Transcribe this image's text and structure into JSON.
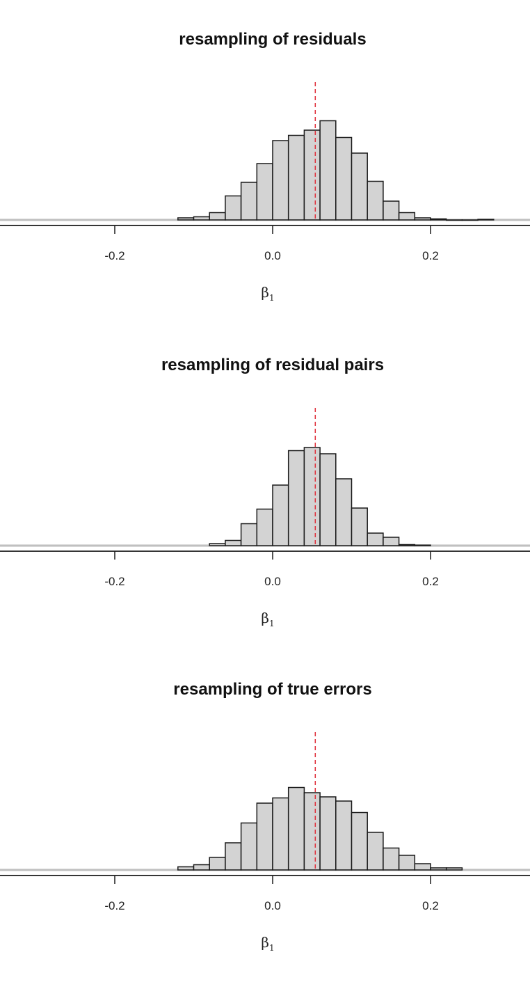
{
  "chart_data": [
    {
      "type": "bar",
      "title": "resampling of residuals",
      "xlabel": "β1",
      "xlabel_main": "β",
      "xlabel_sub": "1",
      "xlim": [
        -0.34,
        0.33
      ],
      "xticks": [
        -0.2,
        0.0,
        0.2
      ],
      "xtick_labels": [
        "-0.2",
        "0.0",
        "0.2"
      ],
      "ylim": [
        0,
        1.0
      ],
      "reference_line": {
        "x": 0.054,
        "style": "dashed",
        "color": "#e0303c"
      },
      "bin_width": 0.02,
      "bin_starts": [
        -0.12,
        -0.1,
        -0.08,
        -0.06,
        -0.04,
        -0.02,
        0.0,
        0.02,
        0.04,
        0.06,
        0.08,
        0.1,
        0.12,
        0.14,
        0.16,
        0.18,
        0.2,
        0.22,
        0.24,
        0.26
      ],
      "values": [
        0.02,
        0.03,
        0.07,
        0.23,
        0.36,
        0.54,
        0.76,
        0.81,
        0.86,
        0.95,
        0.79,
        0.64,
        0.37,
        0.18,
        0.07,
        0.02,
        0.01,
        0.0,
        0.0,
        0.005
      ]
    },
    {
      "type": "bar",
      "title": "resampling of residual pairs",
      "xlabel": "β1",
      "xlabel_main": "β",
      "xlabel_sub": "1",
      "xlim": [
        -0.34,
        0.33
      ],
      "xticks": [
        -0.2,
        0.0,
        0.2
      ],
      "xtick_labels": [
        "-0.2",
        "0.0",
        "0.2"
      ],
      "ylim": [
        0,
        1.0
      ],
      "reference_line": {
        "x": 0.054,
        "style": "dashed",
        "color": "#e0303c"
      },
      "bin_width": 0.02,
      "bin_starts": [
        -0.08,
        -0.06,
        -0.04,
        -0.02,
        0.0,
        0.02,
        0.04,
        0.06,
        0.08,
        0.1,
        0.12,
        0.14,
        0.16,
        0.18
      ],
      "values": [
        0.02,
        0.05,
        0.21,
        0.35,
        0.58,
        0.91,
        0.94,
        0.88,
        0.64,
        0.36,
        0.12,
        0.08,
        0.01,
        0.005
      ]
    },
    {
      "type": "bar",
      "title": "resampling of true errors",
      "xlabel": "β1",
      "xlabel_main": "β",
      "xlabel_sub": "1",
      "xlim": [
        -0.34,
        0.33
      ],
      "xticks": [
        -0.2,
        0.0,
        0.2
      ],
      "xtick_labels": [
        "-0.2",
        "0.0",
        "0.2"
      ],
      "ylim": [
        0,
        1.0
      ],
      "reference_line": {
        "x": 0.054,
        "style": "dashed",
        "color": "#e0303c"
      },
      "bin_width": 0.02,
      "bin_starts": [
        -0.12,
        -0.1,
        -0.08,
        -0.06,
        -0.04,
        -0.02,
        0.0,
        0.02,
        0.04,
        0.06,
        0.08,
        0.1,
        0.12,
        0.14,
        0.16,
        0.18,
        0.2,
        0.22
      ],
      "values": [
        0.03,
        0.05,
        0.12,
        0.26,
        0.45,
        0.64,
        0.69,
        0.79,
        0.74,
        0.7,
        0.66,
        0.55,
        0.36,
        0.21,
        0.14,
        0.06,
        0.02,
        0.02
      ]
    }
  ],
  "colors": {
    "bar_fill": "#d3d3d3",
    "bar_stroke": "#1a1a1a",
    "reference_line": "#e0303c",
    "axis": "#1a1a1a"
  }
}
